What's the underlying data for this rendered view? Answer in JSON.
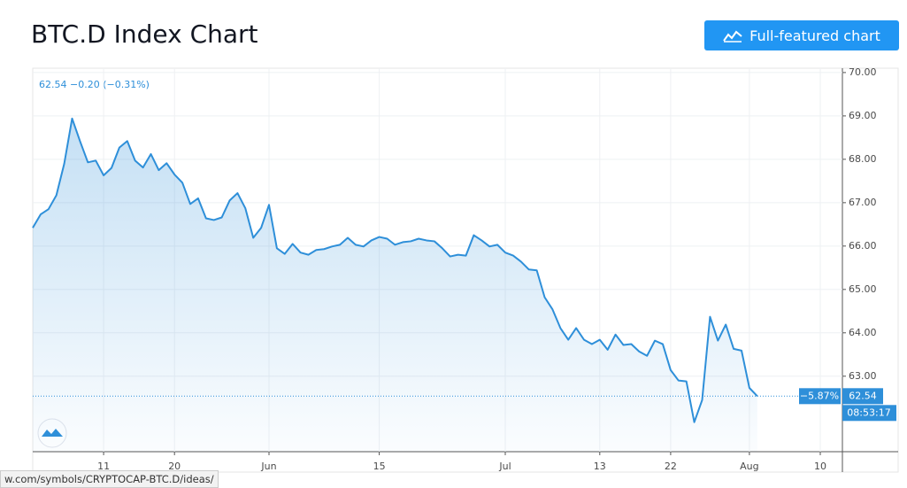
{
  "header": {
    "title": "BTC.D Index Chart",
    "button": "Full-featured chart"
  },
  "status_bar": "w.com/symbols/CRYPTOCAP-BTC.D/ideas/",
  "chart_data": {
    "type": "line",
    "legend_quote": "62.54 −0.20 (−0.31%)",
    "categories": [
      null,
      null,
      null,
      null,
      null,
      null,
      null,
      null,
      null,
      "11",
      null,
      null,
      null,
      null,
      null,
      null,
      null,
      null,
      "20",
      null,
      null,
      null,
      null,
      null,
      null,
      null,
      null,
      null,
      null,
      null,
      "Jun",
      null,
      null,
      null,
      null,
      null,
      null,
      null,
      null,
      null,
      null,
      null,
      null,
      null,
      "15",
      null,
      null,
      null,
      null,
      null,
      null,
      null,
      null,
      null,
      null,
      null,
      null,
      null,
      null,
      null,
      "Jul",
      null,
      null,
      null,
      null,
      null,
      null,
      null,
      null,
      null,
      null,
      null,
      "13",
      null,
      null,
      null,
      null,
      null,
      null,
      null,
      null,
      "22",
      null,
      null,
      null,
      null,
      null,
      null,
      null,
      null,
      null,
      "Aug",
      null,
      null,
      null,
      null,
      null,
      null,
      null,
      null,
      "10"
    ],
    "series": [
      {
        "color": "#2e8fd9",
        "values": [
          66.42,
          66.73,
          66.85,
          67.17,
          67.9,
          68.94,
          68.42,
          67.93,
          67.97,
          67.63,
          67.8,
          68.27,
          68.42,
          67.97,
          67.81,
          68.12,
          67.75,
          67.91,
          67.65,
          67.46,
          66.97,
          67.1,
          66.64,
          66.6,
          66.66,
          67.05,
          67.22,
          66.87,
          66.19,
          66.42,
          66.95,
          65.95,
          65.82,
          66.05,
          65.85,
          65.8,
          65.91,
          65.93,
          65.99,
          66.03,
          66.19,
          66.03,
          65.99,
          66.13,
          66.21,
          66.17,
          66.03,
          66.09,
          66.11,
          66.17,
          66.13,
          66.11,
          65.95,
          65.76,
          65.8,
          65.78,
          66.25,
          66.13,
          65.99,
          66.03,
          65.85,
          65.78,
          65.64,
          65.46,
          65.44,
          64.82,
          64.54,
          64.11,
          63.84,
          64.11,
          63.84,
          63.74,
          63.84,
          63.61,
          63.96,
          63.72,
          63.74,
          63.57,
          63.47,
          63.82,
          63.74,
          63.14,
          62.9,
          62.88,
          61.94,
          62.45,
          64.37,
          63.82,
          64.19,
          63.63,
          63.59,
          62.73,
          62.54,
          null,
          null,
          null,
          null,
          null,
          null,
          null,
          null
        ]
      }
    ],
    "ylim": [
      61.26,
      70.1
    ],
    "yticks": [
      {
        "value": 63,
        "label": "63.00"
      },
      {
        "value": 64,
        "label": "64.00"
      },
      {
        "value": 65,
        "label": "65.00"
      },
      {
        "value": 66,
        "label": "66.00"
      },
      {
        "value": 67,
        "label": "67.00"
      },
      {
        "value": 68,
        "label": "68.00"
      },
      {
        "value": 69,
        "label": "69.00"
      },
      {
        "value": 70,
        "label": "70.00"
      }
    ],
    "grid": true,
    "price_line": {
      "value": 62.54,
      "label": "62.54",
      "change": "−5.87%",
      "countdown": "08:53:17"
    }
  }
}
